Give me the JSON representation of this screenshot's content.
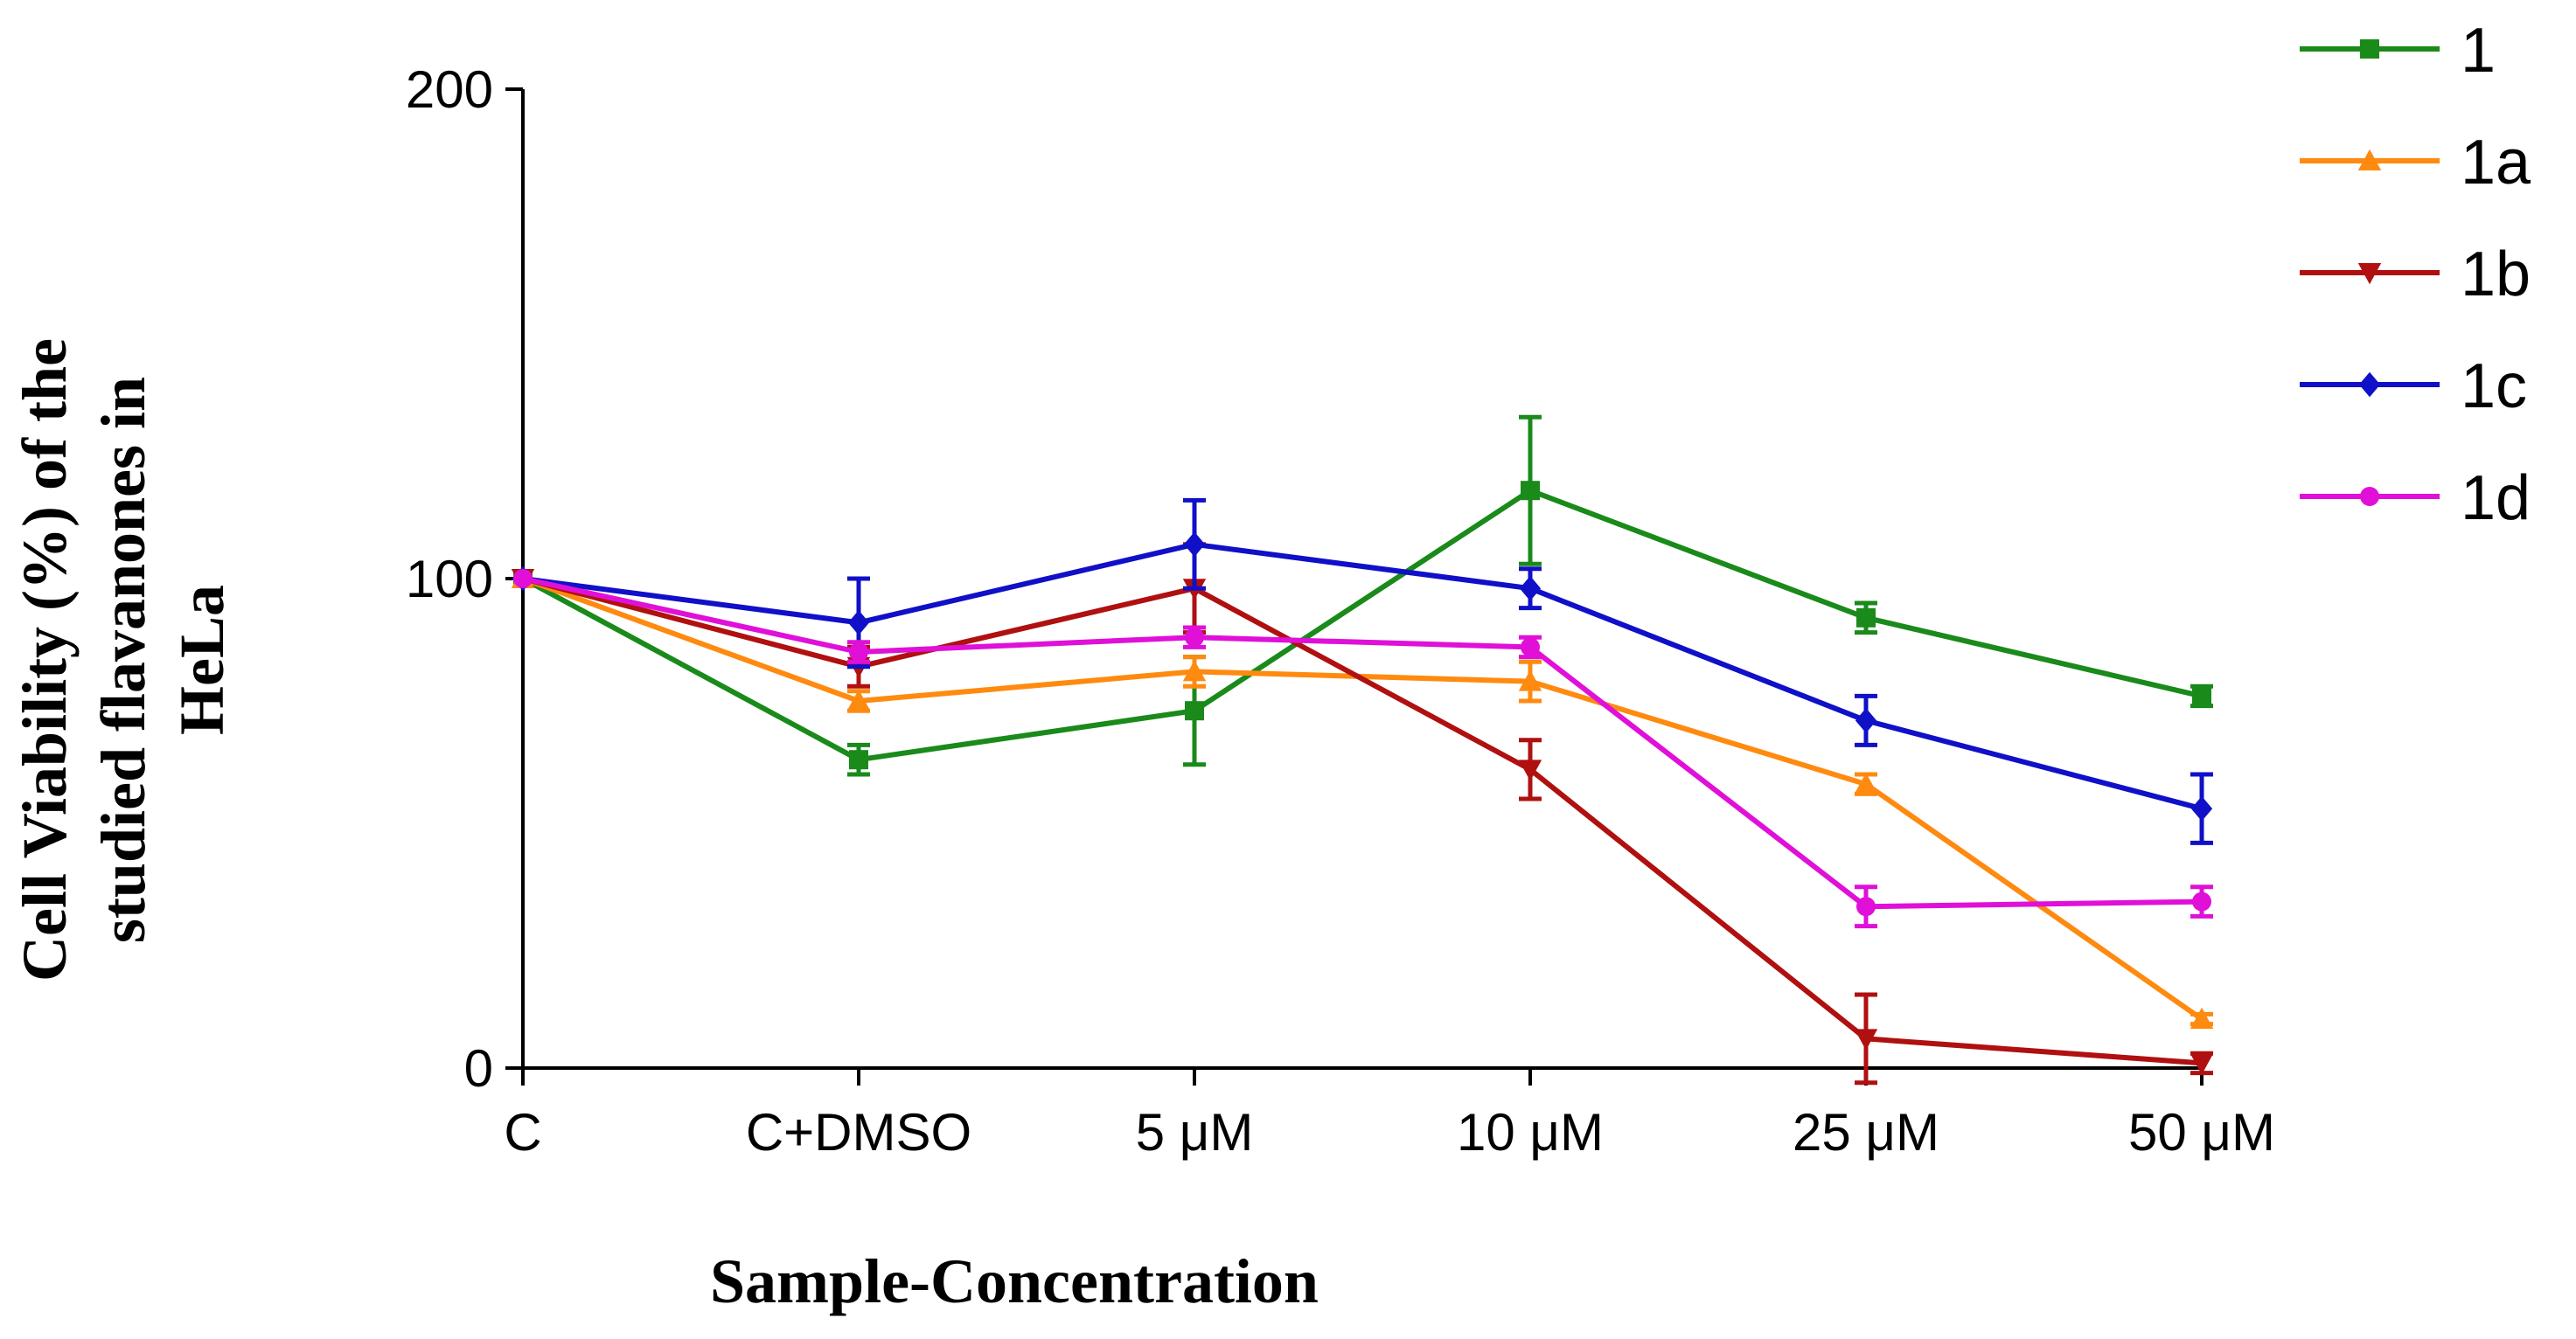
{
  "chart_data": {
    "type": "line",
    "title": "",
    "xlabel": "Sample-Concentration",
    "ylabel_lines": [
      "Cell Viability (%) of the",
      "studied flavanones in",
      "HeLa"
    ],
    "categories": [
      "C",
      "C+DMSO",
      "5 μM",
      "10 μM",
      "25 μM",
      "50 μM"
    ],
    "ylim": [
      0,
      200
    ],
    "yticks": [
      0,
      100,
      200
    ],
    "grid": false,
    "legend_position": "top-right",
    "error_bars": true,
    "series": [
      {
        "name": "1",
        "color": "#1a8a1a",
        "marker": "square",
        "values": [
          100,
          63,
          73,
          118,
          92,
          76
        ],
        "errors": [
          0,
          3,
          11,
          15,
          3,
          2
        ]
      },
      {
        "name": "1a",
        "color": "#ff8a10",
        "marker": "triangle-up",
        "values": [
          100,
          75,
          81,
          79,
          58,
          10
        ],
        "errors": [
          0,
          2,
          3,
          4,
          2,
          1
        ]
      },
      {
        "name": "1b",
        "color": "#b01010",
        "marker": "triangle-down",
        "values": [
          100,
          82,
          98,
          61,
          6,
          1
        ],
        "errors": [
          0,
          4,
          9,
          6,
          9,
          2
        ]
      },
      {
        "name": "1c",
        "color": "#1010c8",
        "marker": "diamond",
        "values": [
          100,
          91,
          107,
          98,
          71,
          53
        ],
        "errors": [
          0,
          9,
          9,
          4,
          5,
          7
        ]
      },
      {
        "name": "1d",
        "color": "#e010d8",
        "marker": "circle",
        "values": [
          100,
          85,
          88,
          86,
          33,
          34
        ],
        "errors": [
          0,
          2,
          2,
          2,
          4,
          3
        ]
      }
    ]
  }
}
